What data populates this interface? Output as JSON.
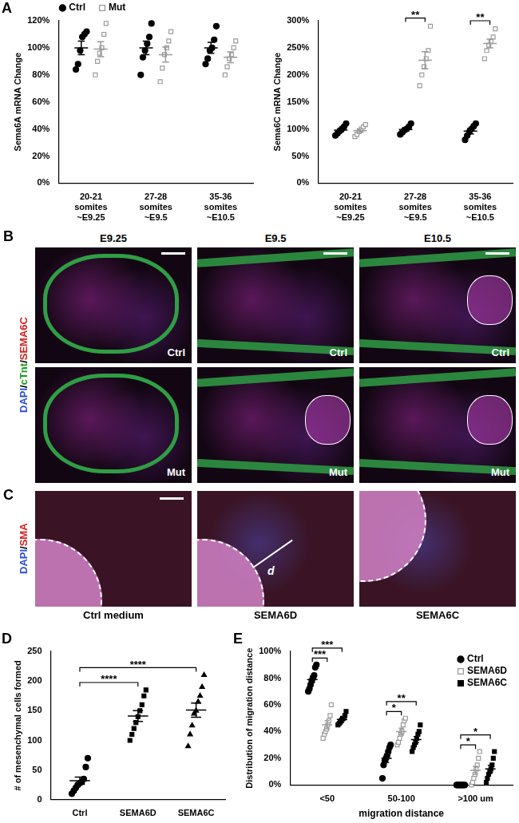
{
  "chart_data": [
    {
      "panel": "A",
      "type": "scatter",
      "y_label": "Sema6A mRNA Change",
      "categories": [
        [
          "20-21",
          "somites",
          "~E9.25"
        ],
        [
          "27-28",
          "somites",
          "~E9.5"
        ],
        [
          "35-36",
          "somites",
          "~E10.5"
        ]
      ],
      "series": [
        {
          "name": "Ctrl",
          "color": "#000000",
          "marker": "circle",
          "values": [
            [
              84,
              88,
              98,
              108,
              110,
              112
            ],
            [
              80,
              93,
              98,
              103,
              108,
              118
            ],
            [
              88,
              92,
              98,
              100,
              106,
              116
            ]
          ],
          "mean": [
            100,
            100,
            100
          ],
          "error": [
            5,
            5,
            4
          ]
        },
        {
          "name": "Mut",
          "color": "#9a9a9a",
          "marker": "open_square",
          "values": [
            [
              80,
              90,
              96,
              100,
              110,
              118
            ],
            [
              75,
              85,
              95,
              100,
              105,
              112
            ],
            [
              80,
              86,
              92,
              95,
              100,
              105
            ]
          ],
          "mean": [
            99,
            95,
            93
          ],
          "error": [
            5.5,
            5.5,
            4
          ]
        }
      ],
      "ylim": [
        0,
        120
      ],
      "yticks": [
        {
          "value": 0,
          "label": "0%"
        },
        {
          "value": 20,
          "label": "20%"
        },
        {
          "value": 40,
          "label": "40%"
        },
        {
          "value": 60,
          "label": "60%"
        },
        {
          "value": 80,
          "label": "80%"
        },
        {
          "value": 100,
          "label": "100%"
        },
        {
          "value": 120,
          "label": "120%"
        }
      ],
      "grid": false,
      "legend": "top-left"
    },
    {
      "type": "scatter",
      "y_label": "Sema6C mRNA Change",
      "categories": [
        [
          "20-21",
          "somites",
          "~E9.25"
        ],
        [
          "27-28",
          "somites",
          "~E9.5"
        ],
        [
          "35-36",
          "somites",
          "~E10.5"
        ]
      ],
      "series": [
        {
          "color": "#000000",
          "marker": "circle",
          "values": [
            [
              88,
              92,
              96,
              100,
              104,
              110
            ],
            [
              90,
              94,
              98,
              100,
              104,
              110
            ],
            [
              80,
              88,
              95,
              100,
              105,
              110
            ]
          ],
          "mean": [
            98,
            99,
            96
          ],
          "error": [
            3,
            3,
            5
          ]
        },
        {
          "color": "#9a9a9a",
          "marker": "open_square",
          "values": [
            [
              86,
              90,
              95,
              100,
              104,
              108
            ],
            [
              180,
              200,
              215,
              230,
              245,
              290
            ],
            [
              230,
              245,
              255,
              262,
              270,
              285
            ]
          ],
          "mean": [
            97,
            227,
            258
          ],
          "error": [
            3,
            16,
            8
          ]
        }
      ],
      "ylim": [
        0,
        300
      ],
      "yticks": [
        {
          "value": 0,
          "label": "0%"
        },
        {
          "value": 50,
          "label": "50%"
        },
        {
          "value": 100,
          "label": "100%"
        },
        {
          "value": 150,
          "label": "150%"
        },
        {
          "value": 200,
          "label": "200%"
        },
        {
          "value": 250,
          "label": "250%"
        },
        {
          "value": 300,
          "label": "300%"
        }
      ],
      "grid": false,
      "annotations": [
        {
          "text": "**",
          "category": 1,
          "series": [
            0,
            1
          ]
        },
        {
          "text": "**",
          "category": 2,
          "series": [
            0,
            1
          ]
        }
      ]
    },
    {
      "panel": "D",
      "type": "scatter",
      "y_label": "# of mesenchymal cells formed",
      "categories": [
        "Ctrl",
        "SEMA6D",
        "SEMA6C"
      ],
      "series": [
        {
          "color": "#000000",
          "marker": "circle",
          "values": [
            [
              10,
              15,
              20,
              25,
              28,
              30,
              35,
              55,
              70
            ],
            null,
            null
          ],
          "mean": [
            32,
            null,
            null
          ],
          "error": [
            6,
            null,
            null
          ]
        },
        {
          "color": "#000000",
          "marker": "square",
          "values": [
            null,
            [
              100,
              110,
              120,
              130,
              140,
              150,
              160,
              175,
              185
            ],
            null
          ],
          "mean": [
            null,
            141,
            null
          ],
          "error": [
            null,
            9,
            null
          ]
        },
        {
          "color": "#000000",
          "marker": "triangle",
          "values": [
            null,
            null,
            [
              90,
              110,
              125,
              145,
              150,
              165,
              175,
              190,
              210
            ]
          ],
          "mean": [
            null,
            null,
            151
          ],
          "error": [
            null,
            null,
            12
          ]
        }
      ],
      "ylim": [
        0,
        250
      ],
      "yticks": [
        0,
        50,
        100,
        150,
        200,
        250
      ],
      "grid": false,
      "annotations": [
        {
          "text": "****",
          "categories": [
            0,
            1
          ]
        },
        {
          "text": "****",
          "categories": [
            0,
            2
          ]
        }
      ]
    },
    {
      "panel": "E",
      "type": "scatter",
      "x_label": "migration distance",
      "y_label": "Distribution of migration distance",
      "categories": [
        "<50",
        "50-100",
        ">100 um"
      ],
      "series": [
        {
          "name": "Ctrl",
          "color": "#000000",
          "marker": "circle",
          "values": [
            [
              70,
              72,
              75,
              78,
              80,
              82,
              88,
              90
            ],
            [
              5,
              15,
              18,
              20,
              22,
              25,
              28,
              30
            ],
            [
              0,
              0,
              0,
              0,
              0,
              0,
              0,
              0
            ]
          ],
          "mean": [
            79,
            20,
            0
          ],
          "error": [
            2.5,
            3,
            0
          ]
        },
        {
          "name": "SEMA6D",
          "color": "#9a9a9a",
          "marker": "open_square",
          "values": [
            [
              35,
              38,
              40,
              42,
              45,
              48,
              52,
              60
            ],
            [
              30,
              32,
              35,
              38,
              40,
              45,
              48,
              50
            ],
            [
              0,
              2,
              5,
              8,
              12,
              15,
              20,
              25
            ]
          ],
          "mean": [
            45,
            40,
            11
          ],
          "error": [
            3,
            2.5,
            3
          ]
        },
        {
          "name": "SEMA6C",
          "color": "#000000",
          "marker": "square",
          "values": [
            [
              45,
              46,
              47,
              48,
              50,
              50,
              52,
              55
            ],
            [
              25,
              28,
              30,
              32,
              35,
              38,
              40,
              45
            ],
            [
              2,
              5,
              8,
              10,
              12,
              15,
              20,
              25
            ]
          ],
          "mean": [
            49,
            34,
            12
          ],
          "error": [
            1.2,
            2.3,
            2.7
          ]
        }
      ],
      "ylim": [
        0,
        100
      ],
      "yticks": [
        {
          "value": 0,
          "label": "0%"
        },
        {
          "value": 20,
          "label": "20%"
        },
        {
          "value": 40,
          "label": "40%"
        },
        {
          "value": 60,
          "label": "60%"
        },
        {
          "value": 80,
          "label": "80%"
        },
        {
          "value": 100,
          "label": "100%"
        }
      ],
      "grid": false,
      "legend": "top-right",
      "annotations": [
        {
          "text": "***",
          "category": 0,
          "series": [
            0,
            1
          ]
        },
        {
          "text": "***",
          "category": 0,
          "series": [
            0,
            2
          ]
        },
        {
          "text": "*",
          "category": 1,
          "series": [
            0,
            1
          ]
        },
        {
          "text": "**",
          "category": 1,
          "series": [
            0,
            2
          ]
        },
        {
          "text": "*",
          "category": 2,
          "series": [
            0,
            1
          ]
        },
        {
          "text": "*",
          "category": 2,
          "series": [
            0,
            2
          ]
        }
      ]
    }
  ],
  "image_panels": [
    {
      "panel": "B",
      "column_titles": [
        "E9.25",
        "E9.5",
        "E10.5"
      ],
      "side_label": [
        {
          "text": "DAPI",
          "color": "#2b4fd6"
        },
        {
          "text": "/",
          "color": "#000000"
        },
        {
          "text": "cTnt",
          "color": "#1a9a1a"
        },
        {
          "text": "/",
          "color": "#000000"
        },
        {
          "text": "SEMA6C",
          "color": "#d62020"
        }
      ],
      "images": [
        [
          "Ctrl",
          "Ctrl",
          "Ctrl"
        ],
        [
          "Mut",
          "Mut",
          "Mut"
        ]
      ]
    },
    {
      "panel": "C",
      "side_label": [
        {
          "text": "DAPI",
          "color": "#2b4fd6"
        },
        {
          "text": "/",
          "color": "#000000"
        },
        {
          "text": "SMA",
          "color": "#d62020"
        }
      ],
      "captions": [
        "Ctrl medium",
        "SEMA6D",
        "SEMA6C"
      ],
      "annotation": {
        "text": "d",
        "image": 1
      }
    }
  ]
}
